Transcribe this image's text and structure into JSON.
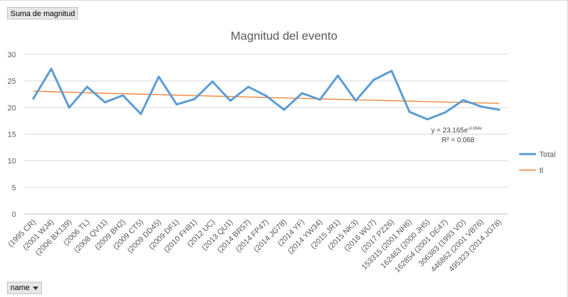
{
  "field_button": {
    "label": "Suma de magnitud"
  },
  "axis_button": {
    "label": "name"
  },
  "trendline": {
    "equation_prefix": "y = 23.165e",
    "equation_exponent": "-0.004x",
    "r_squared": "R² = 0.068"
  },
  "chart_data": {
    "type": "line",
    "title": "Magnitud del evento",
    "xlabel": "",
    "ylabel": "",
    "ylim": [
      0,
      30
    ],
    "yticks": [
      0,
      5,
      10,
      15,
      20,
      25,
      30
    ],
    "grid": true,
    "legend_position": "right",
    "categories": [
      "(1995 CR)",
      "(2001 WJ4)",
      "(2006 BX139)",
      "(2006 TL)",
      "(2008 QV11)",
      "(2009 BH2)",
      "(2009 CT5)",
      "(2009 DD45)",
      "(2009 DF1)",
      "(2010 FH81)",
      "(2012 UC)",
      "(2013 QU1)",
      "(2014 BR57)",
      "(2014 FP47)",
      "(2014 JG78)",
      "(2014 YF)",
      "(2014 YW34)",
      "(2015 JR1)",
      "(2015 NK3)",
      "(2016 WU7)",
      "(2017 PZ26)",
      "153315 (2001 NH6)",
      "162463 (2000 JH5)",
      "162854 (2001 DE47)",
      "306383 (1993 VD)",
      "446862 (2001 VB76)",
      "495323 (2014 JG78)"
    ],
    "series": [
      {
        "name": "Total",
        "color": "#5b9bd5",
        "values": [
          21.7,
          27.3,
          20.0,
          23.9,
          21.0,
          22.3,
          18.8,
          25.8,
          20.6,
          21.6,
          24.9,
          21.3,
          23.9,
          22.2,
          19.6,
          22.7,
          21.5,
          26.0,
          21.3,
          25.2,
          26.9,
          19.2,
          17.8,
          19.1,
          21.4,
          20.2,
          19.6
        ]
      },
      {
        "name": "tl",
        "color": "#ed7d31",
        "trend": {
          "a": 23.165,
          "b": -0.004
        }
      }
    ]
  }
}
